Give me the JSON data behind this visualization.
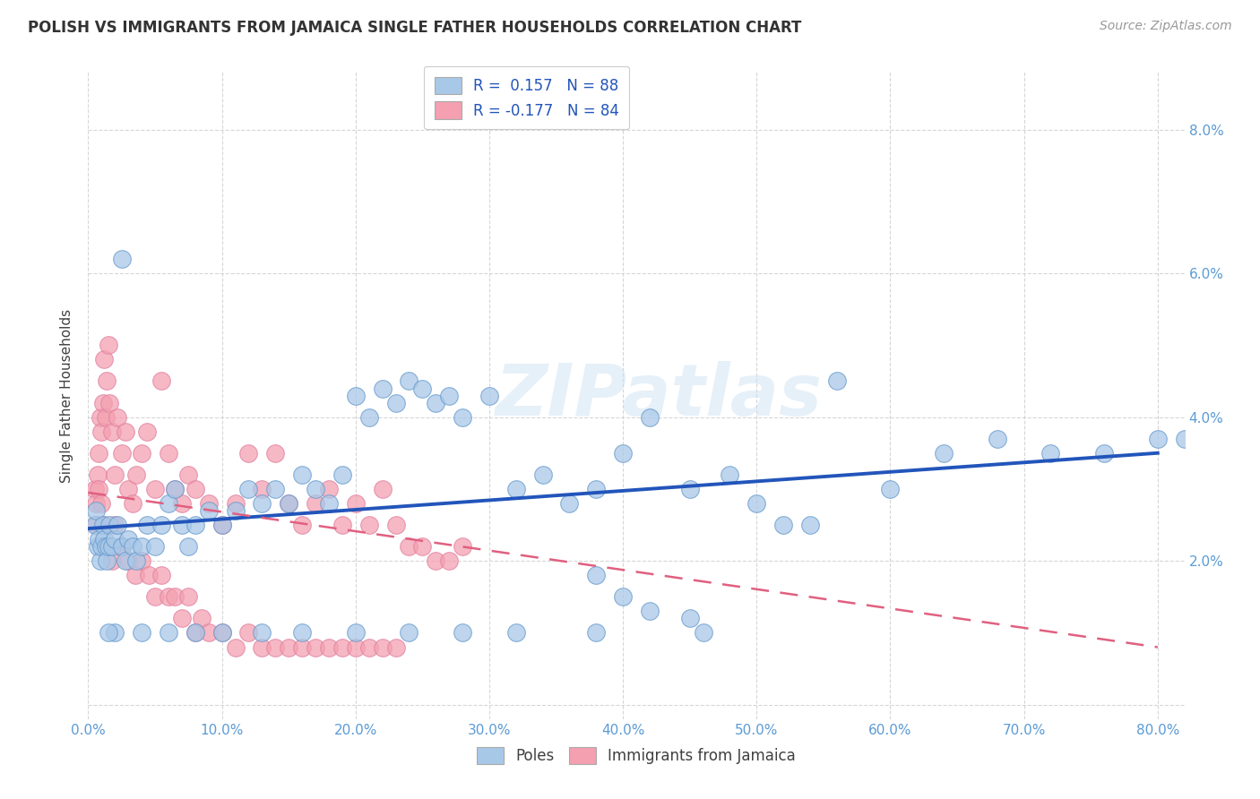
{
  "title": "POLISH VS IMMIGRANTS FROM JAMAICA SINGLE FATHER HOUSEHOLDS CORRELATION CHART",
  "source": "Source: ZipAtlas.com",
  "ylabel": "Single Father Households",
  "ytick_vals": [
    0.0,
    0.02,
    0.04,
    0.06,
    0.08
  ],
  "ytick_labels": [
    "",
    "2.0%",
    "4.0%",
    "6.0%",
    "8.0%"
  ],
  "xtick_vals": [
    0.0,
    0.1,
    0.2,
    0.3,
    0.4,
    0.5,
    0.6,
    0.7,
    0.8
  ],
  "xtick_labels": [
    "0.0%",
    "10.0%",
    "20.0%",
    "30.0%",
    "40.0%",
    "50.0%",
    "60.0%",
    "70.0%",
    "80.0%"
  ],
  "xlim": [
    0.0,
    0.82
  ],
  "ylim": [
    -0.002,
    0.088
  ],
  "legend_blue_r": "R =  0.157",
  "legend_blue_n": "N = 88",
  "legend_pink_r": "R = -0.177",
  "legend_pink_n": "N = 84",
  "blue_color": "#a8c8e8",
  "pink_color": "#f4a0b0",
  "blue_line_color": "#2255bb",
  "pink_line_color": "#e06080",
  "watermark": "ZIPatlas",
  "blue_trend_x": [
    0.0,
    0.8
  ],
  "blue_trend_y": [
    0.0245,
    0.035
  ],
  "pink_trend_x": [
    0.0,
    0.8
  ],
  "pink_trend_y": [
    0.0295,
    0.008
  ],
  "poles_x": [
    0.005,
    0.006,
    0.007,
    0.008,
    0.009,
    0.01,
    0.011,
    0.012,
    0.013,
    0.014,
    0.015,
    0.016,
    0.018,
    0.02,
    0.022,
    0.025,
    0.028,
    0.03,
    0.033,
    0.036,
    0.04,
    0.044,
    0.05,
    0.055,
    0.06,
    0.065,
    0.07,
    0.075,
    0.08,
    0.09,
    0.1,
    0.11,
    0.12,
    0.13,
    0.14,
    0.15,
    0.16,
    0.17,
    0.18,
    0.19,
    0.2,
    0.21,
    0.22,
    0.23,
    0.24,
    0.25,
    0.26,
    0.27,
    0.28,
    0.3,
    0.32,
    0.34,
    0.36,
    0.38,
    0.4,
    0.42,
    0.45,
    0.48,
    0.5,
    0.52,
    0.54,
    0.56,
    0.6,
    0.64,
    0.68,
    0.72,
    0.76,
    0.8,
    0.82,
    0.38,
    0.4,
    0.42,
    0.45,
    0.46,
    0.38,
    0.32,
    0.28,
    0.24,
    0.2,
    0.16,
    0.13,
    0.1,
    0.08,
    0.06,
    0.04,
    0.025,
    0.02,
    0.015
  ],
  "poles_y": [
    0.025,
    0.027,
    0.022,
    0.023,
    0.02,
    0.022,
    0.025,
    0.023,
    0.022,
    0.02,
    0.022,
    0.025,
    0.022,
    0.023,
    0.025,
    0.022,
    0.02,
    0.023,
    0.022,
    0.02,
    0.022,
    0.025,
    0.022,
    0.025,
    0.028,
    0.03,
    0.025,
    0.022,
    0.025,
    0.027,
    0.025,
    0.027,
    0.03,
    0.028,
    0.03,
    0.028,
    0.032,
    0.03,
    0.028,
    0.032,
    0.043,
    0.04,
    0.044,
    0.042,
    0.045,
    0.044,
    0.042,
    0.043,
    0.04,
    0.043,
    0.03,
    0.032,
    0.028,
    0.03,
    0.035,
    0.04,
    0.03,
    0.032,
    0.028,
    0.025,
    0.025,
    0.045,
    0.03,
    0.035,
    0.037,
    0.035,
    0.035,
    0.037,
    0.037,
    0.018,
    0.015,
    0.013,
    0.012,
    0.01,
    0.01,
    0.01,
    0.01,
    0.01,
    0.01,
    0.01,
    0.01,
    0.01,
    0.01,
    0.01,
    0.01,
    0.062,
    0.01,
    0.01
  ],
  "jamaica_x": [
    0.005,
    0.006,
    0.007,
    0.008,
    0.009,
    0.01,
    0.011,
    0.012,
    0.013,
    0.014,
    0.015,
    0.016,
    0.018,
    0.02,
    0.022,
    0.025,
    0.028,
    0.03,
    0.033,
    0.036,
    0.04,
    0.044,
    0.05,
    0.055,
    0.06,
    0.065,
    0.07,
    0.075,
    0.08,
    0.09,
    0.1,
    0.11,
    0.12,
    0.13,
    0.14,
    0.15,
    0.16,
    0.17,
    0.18,
    0.19,
    0.2,
    0.21,
    0.22,
    0.23,
    0.24,
    0.25,
    0.26,
    0.27,
    0.28,
    0.006,
    0.008,
    0.01,
    0.012,
    0.015,
    0.018,
    0.02,
    0.025,
    0.03,
    0.035,
    0.04,
    0.045,
    0.05,
    0.055,
    0.06,
    0.065,
    0.07,
    0.075,
    0.08,
    0.085,
    0.09,
    0.1,
    0.11,
    0.12,
    0.13,
    0.14,
    0.15,
    0.16,
    0.17,
    0.18,
    0.19,
    0.2,
    0.21,
    0.22,
    0.23
  ],
  "jamaica_y": [
    0.03,
    0.028,
    0.032,
    0.035,
    0.04,
    0.038,
    0.042,
    0.048,
    0.04,
    0.045,
    0.05,
    0.042,
    0.038,
    0.032,
    0.04,
    0.035,
    0.038,
    0.03,
    0.028,
    0.032,
    0.035,
    0.038,
    0.03,
    0.045,
    0.035,
    0.03,
    0.028,
    0.032,
    0.03,
    0.028,
    0.025,
    0.028,
    0.035,
    0.03,
    0.035,
    0.028,
    0.025,
    0.028,
    0.03,
    0.025,
    0.028,
    0.025,
    0.03,
    0.025,
    0.022,
    0.022,
    0.02,
    0.02,
    0.022,
    0.025,
    0.03,
    0.028,
    0.025,
    0.022,
    0.02,
    0.025,
    0.022,
    0.02,
    0.018,
    0.02,
    0.018,
    0.015,
    0.018,
    0.015,
    0.015,
    0.012,
    0.015,
    0.01,
    0.012,
    0.01,
    0.01,
    0.008,
    0.01,
    0.008,
    0.008,
    0.008,
    0.008,
    0.008,
    0.008,
    0.008,
    0.008,
    0.008,
    0.008,
    0.008
  ]
}
